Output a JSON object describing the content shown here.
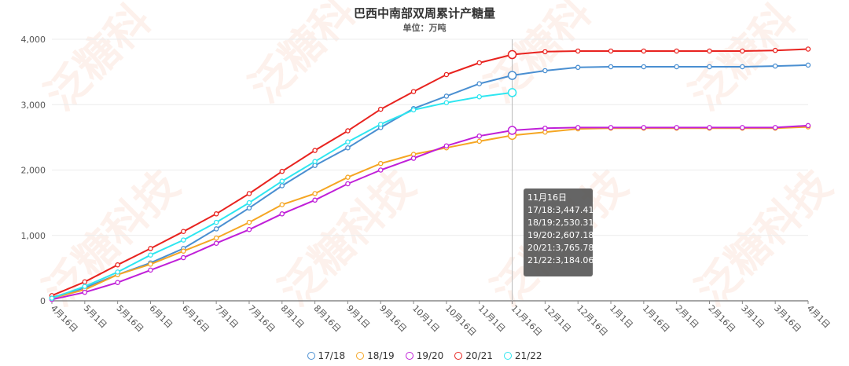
{
  "title": "巴西中南部双周累计产糖量",
  "subtitle": "单位：万吨",
  "watermark": "泛糖科技",
  "chart_data": {
    "type": "line",
    "title": "巴西中南部双周累计产糖量",
    "subtitle": "单位：万吨",
    "categories": [
      "4月16日",
      "5月1日",
      "5月16日",
      "6月1日",
      "6月16日",
      "7月1日",
      "7月16日",
      "8月1日",
      "8月16日",
      "9月1日",
      "9月16日",
      "10月1日",
      "10月16日",
      "11月1日",
      "11月16日",
      "12月1日",
      "12月16日",
      "1月1日",
      "1月16日",
      "2月1日",
      "2月16日",
      "3月1日",
      "3月16日",
      "4月1日"
    ],
    "ylim": [
      0,
      4000
    ],
    "yticks": [
      0,
      1000,
      2000,
      3000,
      4000
    ],
    "ytick_labels": [
      "0",
      "1,000",
      "2,000",
      "3,000",
      "4,000"
    ],
    "grid": true,
    "legend_position": "bottom-center",
    "series": [
      {
        "name": "17/18",
        "color": "#4a8fd1",
        "values": [
          50,
          200,
          400,
          580,
          800,
          1100,
          1420,
          1760,
          2070,
          2340,
          2650,
          2940,
          3130,
          3320,
          3447.41,
          3520,
          3570,
          3580,
          3580,
          3580,
          3580,
          3580,
          3590,
          3605
        ]
      },
      {
        "name": "18/19",
        "color": "#f5a623",
        "values": [
          40,
          170,
          400,
          560,
          760,
          960,
          1200,
          1470,
          1640,
          1890,
          2100,
          2240,
          2340,
          2440,
          2530.31,
          2580,
          2630,
          2640,
          2640,
          2640,
          2640,
          2640,
          2640,
          2660
        ]
      },
      {
        "name": "19/20",
        "color": "#c020d8",
        "values": [
          20,
          130,
          280,
          470,
          660,
          880,
          1090,
          1330,
          1540,
          1790,
          2000,
          2180,
          2370,
          2520,
          2607.18,
          2640,
          2650,
          2650,
          2650,
          2650,
          2650,
          2650,
          2650,
          2680
        ]
      },
      {
        "name": "20/21",
        "color": "#e8231f",
        "values": [
          80,
          290,
          550,
          800,
          1060,
          1330,
          1640,
          1980,
          2300,
          2600,
          2930,
          3200,
          3460,
          3640,
          3765.78,
          3810,
          3820,
          3820,
          3820,
          3820,
          3820,
          3820,
          3830,
          3850
        ]
      },
      {
        "name": "21/22",
        "color": "#2ee6f0",
        "values": [
          40,
          220,
          440,
          700,
          930,
          1200,
          1500,
          1830,
          2130,
          2430,
          2700,
          2920,
          3030,
          3120,
          3184.06,
          null,
          null,
          null,
          null,
          null,
          null,
          null,
          null,
          null
        ]
      }
    ],
    "marker_category": "11月16日",
    "tooltip": {
      "header": "11月16日",
      "lines": [
        "17/18:3,447.41",
        "18/19:2,530.31",
        "19/20:2,607.18",
        "20/21:3,765.78",
        "21/22:3,184.06"
      ]
    }
  },
  "legend": {
    "items": [
      {
        "label": "17/18",
        "color": "#4a8fd1"
      },
      {
        "label": "18/19",
        "color": "#f5a623"
      },
      {
        "label": "19/20",
        "color": "#c020d8"
      },
      {
        "label": "20/21",
        "color": "#e8231f"
      },
      {
        "label": "21/22",
        "color": "#2ee6f0"
      }
    ]
  }
}
